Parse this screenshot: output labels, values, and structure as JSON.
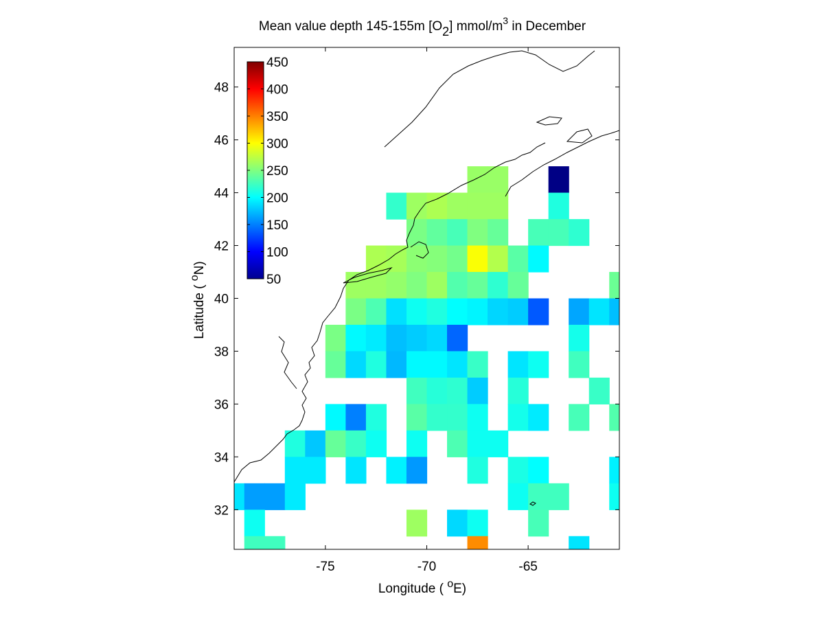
{
  "chart_data": {
    "type": "heatmap",
    "title": {
      "main": "Mean value depth 145-155m [O",
      "subscript": "2",
      "unit_main": "] mmol/m",
      "unit_superscript": "3",
      "suffix": " in December"
    },
    "xlabel": {
      "before": "Longitude ( ",
      "superscript": "o",
      "after": "E)"
    },
    "ylabel": {
      "before": "Latitude ( ",
      "superscript": "o",
      "after": "N)"
    },
    "xlim": [
      -79.5,
      -60.5
    ],
    "ylim": [
      30.5,
      49.5
    ],
    "x_ticks": [
      -75,
      -70,
      -65
    ],
    "x_tick_labels": [
      "-75",
      "-70",
      "-65"
    ],
    "y_ticks": [
      32,
      34,
      36,
      38,
      40,
      42,
      44,
      46,
      48
    ],
    "y_tick_labels": [
      "32",
      "34",
      "36",
      "38",
      "40",
      "42",
      "44",
      "46",
      "48"
    ],
    "cell_size_deg": 1,
    "colorbar": {
      "min": 50,
      "max": 450,
      "ticks": [
        50,
        100,
        150,
        200,
        250,
        300,
        350,
        400,
        450
      ],
      "tick_labels": [
        "50",
        "100",
        "150",
        "200",
        "250",
        "300",
        "350",
        "400",
        "450"
      ],
      "colormap": "jet",
      "placement": "top-left"
    },
    "value_unit": "mmol/m^3",
    "cells": [
      {
        "lon": -67.5,
        "lat": 44.5,
        "value": 260
      },
      {
        "lon": -66.5,
        "lat": 44.5,
        "value": 260
      },
      {
        "lon": -63.5,
        "lat": 44.5,
        "value": 52
      },
      {
        "lon": -71.5,
        "lat": 43.5,
        "value": 220
      },
      {
        "lon": -70.5,
        "lat": 43.5,
        "value": 262
      },
      {
        "lon": -69.5,
        "lat": 43.5,
        "value": 268
      },
      {
        "lon": -68.5,
        "lat": 43.5,
        "value": 262
      },
      {
        "lon": -67.5,
        "lat": 43.5,
        "value": 262
      },
      {
        "lon": -66.5,
        "lat": 43.5,
        "value": 262
      },
      {
        "lon": -63.5,
        "lat": 43.5,
        "value": 212
      },
      {
        "lon": -70.5,
        "lat": 42.5,
        "value": 248
      },
      {
        "lon": -69.5,
        "lat": 42.5,
        "value": 238
      },
      {
        "lon": -68.5,
        "lat": 42.5,
        "value": 228
      },
      {
        "lon": -67.5,
        "lat": 42.5,
        "value": 250
      },
      {
        "lon": -66.5,
        "lat": 42.5,
        "value": 240
      },
      {
        "lon": -64.5,
        "lat": 42.5,
        "value": 228
      },
      {
        "lon": -63.5,
        "lat": 42.5,
        "value": 228
      },
      {
        "lon": -62.5,
        "lat": 42.5,
        "value": 218
      },
      {
        "lon": -72.5,
        "lat": 41.5,
        "value": 268
      },
      {
        "lon": -71.5,
        "lat": 41.5,
        "value": 265
      },
      {
        "lon": -70.5,
        "lat": 41.5,
        "value": 255
      },
      {
        "lon": -69.5,
        "lat": 41.5,
        "value": 252
      },
      {
        "lon": -68.5,
        "lat": 41.5,
        "value": 245
      },
      {
        "lon": -67.5,
        "lat": 41.5,
        "value": 298
      },
      {
        "lon": -66.5,
        "lat": 41.5,
        "value": 270
      },
      {
        "lon": -65.5,
        "lat": 41.5,
        "value": 235
      },
      {
        "lon": -64.5,
        "lat": 41.5,
        "value": 198
      },
      {
        "lon": -73.5,
        "lat": 40.5,
        "value": 262
      },
      {
        "lon": -72.5,
        "lat": 40.5,
        "value": 262
      },
      {
        "lon": -71.5,
        "lat": 40.5,
        "value": 258
      },
      {
        "lon": -70.5,
        "lat": 40.5,
        "value": 250
      },
      {
        "lon": -69.5,
        "lat": 40.5,
        "value": 262
      },
      {
        "lon": -68.5,
        "lat": 40.5,
        "value": 232
      },
      {
        "lon": -67.5,
        "lat": 40.5,
        "value": 240
      },
      {
        "lon": -66.5,
        "lat": 40.5,
        "value": 218
      },
      {
        "lon": -65.5,
        "lat": 40.5,
        "value": 240
      },
      {
        "lon": -60.5,
        "lat": 40.5,
        "value": 242
      },
      {
        "lon": -73.5,
        "lat": 39.5,
        "value": 248
      },
      {
        "lon": -72.5,
        "lat": 39.5,
        "value": 230
      },
      {
        "lon": -71.5,
        "lat": 39.5,
        "value": 188
      },
      {
        "lon": -70.5,
        "lat": 39.5,
        "value": 205
      },
      {
        "lon": -69.5,
        "lat": 39.5,
        "value": 212
      },
      {
        "lon": -68.5,
        "lat": 39.5,
        "value": 200
      },
      {
        "lon": -67.5,
        "lat": 39.5,
        "value": 196
      },
      {
        "lon": -66.5,
        "lat": 39.5,
        "value": 184
      },
      {
        "lon": -65.5,
        "lat": 39.5,
        "value": 180
      },
      {
        "lon": -64.5,
        "lat": 39.5,
        "value": 135
      },
      {
        "lon": -62.5,
        "lat": 39.5,
        "value": 165
      },
      {
        "lon": -61.5,
        "lat": 39.5,
        "value": 190
      },
      {
        "lon": -60.5,
        "lat": 39.5,
        "value": 175
      },
      {
        "lon": -74.5,
        "lat": 38.5,
        "value": 248
      },
      {
        "lon": -73.5,
        "lat": 38.5,
        "value": 198
      },
      {
        "lon": -72.5,
        "lat": 38.5,
        "value": 192
      },
      {
        "lon": -71.5,
        "lat": 38.5,
        "value": 175
      },
      {
        "lon": -70.5,
        "lat": 38.5,
        "value": 180
      },
      {
        "lon": -69.5,
        "lat": 38.5,
        "value": 185
      },
      {
        "lon": -68.5,
        "lat": 38.5,
        "value": 140
      },
      {
        "lon": -62.5,
        "lat": 38.5,
        "value": 208
      },
      {
        "lon": -74.5,
        "lat": 37.5,
        "value": 240
      },
      {
        "lon": -73.5,
        "lat": 37.5,
        "value": 185
      },
      {
        "lon": -72.5,
        "lat": 37.5,
        "value": 212
      },
      {
        "lon": -71.5,
        "lat": 37.5,
        "value": 172
      },
      {
        "lon": -70.5,
        "lat": 37.5,
        "value": 198
      },
      {
        "lon": -69.5,
        "lat": 37.5,
        "value": 198
      },
      {
        "lon": -68.5,
        "lat": 37.5,
        "value": 190
      },
      {
        "lon": -67.5,
        "lat": 37.5,
        "value": 222
      },
      {
        "lon": -65.5,
        "lat": 37.5,
        "value": 190
      },
      {
        "lon": -64.5,
        "lat": 37.5,
        "value": 205
      },
      {
        "lon": -62.5,
        "lat": 37.5,
        "value": 225
      },
      {
        "lon": -70.5,
        "lat": 36.5,
        "value": 225
      },
      {
        "lon": -69.5,
        "lat": 36.5,
        "value": 215
      },
      {
        "lon": -68.5,
        "lat": 36.5,
        "value": 218
      },
      {
        "lon": -67.5,
        "lat": 36.5,
        "value": 180
      },
      {
        "lon": -65.5,
        "lat": 36.5,
        "value": 215
      },
      {
        "lon": -61.5,
        "lat": 36.5,
        "value": 222
      },
      {
        "lon": -74.5,
        "lat": 35.5,
        "value": 198
      },
      {
        "lon": -73.5,
        "lat": 35.5,
        "value": 150
      },
      {
        "lon": -72.5,
        "lat": 35.5,
        "value": 212
      },
      {
        "lon": -70.5,
        "lat": 35.5,
        "value": 235
      },
      {
        "lon": -69.5,
        "lat": 35.5,
        "value": 220
      },
      {
        "lon": -68.5,
        "lat": 35.5,
        "value": 220
      },
      {
        "lon": -67.5,
        "lat": 35.5,
        "value": 205
      },
      {
        "lon": -65.5,
        "lat": 35.5,
        "value": 208
      },
      {
        "lon": -64.5,
        "lat": 35.5,
        "value": 192
      },
      {
        "lon": -62.5,
        "lat": 35.5,
        "value": 228
      },
      {
        "lon": -60.5,
        "lat": 35.5,
        "value": 232
      },
      {
        "lon": -76.5,
        "lat": 34.5,
        "value": 212
      },
      {
        "lon": -75.5,
        "lat": 34.5,
        "value": 178
      },
      {
        "lon": -74.5,
        "lat": 34.5,
        "value": 240
      },
      {
        "lon": -73.5,
        "lat": 34.5,
        "value": 222
      },
      {
        "lon": -72.5,
        "lat": 34.5,
        "value": 205
      },
      {
        "lon": -70.5,
        "lat": 34.5,
        "value": 205
      },
      {
        "lon": -68.5,
        "lat": 34.5,
        "value": 230
      },
      {
        "lon": -67.5,
        "lat": 34.5,
        "value": 205
      },
      {
        "lon": -66.5,
        "lat": 34.5,
        "value": 205
      },
      {
        "lon": -76.5,
        "lat": 33.5,
        "value": 192
      },
      {
        "lon": -75.5,
        "lat": 33.5,
        "value": 192
      },
      {
        "lon": -73.5,
        "lat": 33.5,
        "value": 190
      },
      {
        "lon": -71.5,
        "lat": 33.5,
        "value": 195
      },
      {
        "lon": -70.5,
        "lat": 33.5,
        "value": 160
      },
      {
        "lon": -67.5,
        "lat": 33.5,
        "value": 212
      },
      {
        "lon": -65.5,
        "lat": 33.5,
        "value": 210
      },
      {
        "lon": -64.5,
        "lat": 33.5,
        "value": 200
      },
      {
        "lon": -60.5,
        "lat": 33.5,
        "value": 195
      },
      {
        "lon": -79.5,
        "lat": 32.5,
        "value": 190
      },
      {
        "lon": -78.5,
        "lat": 32.5,
        "value": 162
      },
      {
        "lon": -77.5,
        "lat": 32.5,
        "value": 162
      },
      {
        "lon": -76.5,
        "lat": 32.5,
        "value": 192
      },
      {
        "lon": -65.5,
        "lat": 32.5,
        "value": 205
      },
      {
        "lon": -64.5,
        "lat": 32.5,
        "value": 225
      },
      {
        "lon": -63.5,
        "lat": 32.5,
        "value": 225
      },
      {
        "lon": -60.5,
        "lat": 32.5,
        "value": 205
      },
      {
        "lon": -78.5,
        "lat": 31.5,
        "value": 205
      },
      {
        "lon": -70.5,
        "lat": 31.5,
        "value": 262
      },
      {
        "lon": -68.5,
        "lat": 31.5,
        "value": 185
      },
      {
        "lon": -67.5,
        "lat": 31.5,
        "value": 205
      },
      {
        "lon": -64.5,
        "lat": 31.5,
        "value": 228
      },
      {
        "lon": -78.5,
        "lat": 30.5,
        "value": 225
      },
      {
        "lon": -77.5,
        "lat": 30.5,
        "value": 225
      },
      {
        "lon": -67.5,
        "lat": 30.5,
        "value": 345
      },
      {
        "lon": -62.5,
        "lat": 30.5,
        "value": 190
      }
    ]
  }
}
